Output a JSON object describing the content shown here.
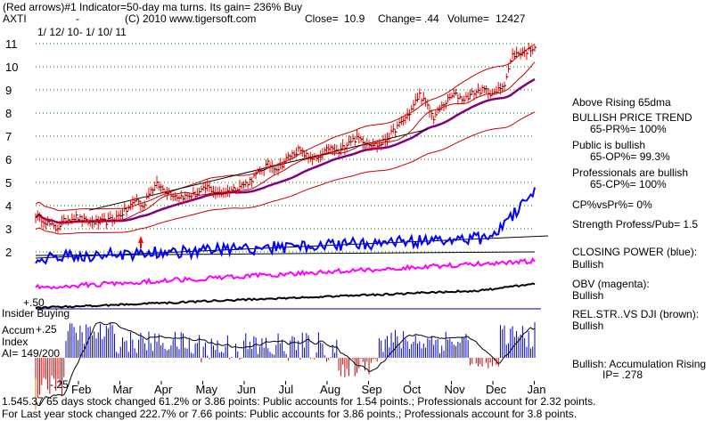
{
  "header": {
    "line1": "(Red arrows)#1 Indicator=50-day ma turns. Its gain= 236% Buy",
    "symbol": "AXTI",
    "dash": "-",
    "copyright": "(C) 2010 www.tigersoft.com",
    "close_label": "Close=",
    "close_value": "10.9",
    "change_label": "Change=",
    "change_value": ".44",
    "volume_label": "Volume=",
    "volume_value": "12427",
    "date_range": "1/ 12/ 10- 1/ 10/ 11"
  },
  "right_panel": {
    "above_ma": "Above Rising 65dma",
    "bullish_trend_title": "BULLISH PRICE TREND",
    "pr_pct": "65-PR%= 100%",
    "public_title": "Public is bullish",
    "op_pct": "65-OP%= 99.3%",
    "pros_title": "Professionals are bullish",
    "cp_pct": "65-CP%= 100%",
    "cpvspr": "CP%vsPr%=  0%",
    "strength": "Strength Profess/Pub= 1.5",
    "closing_power_title": "CLOSING POWER (blue):",
    "closing_power_value": "Bullish",
    "obv_title": "OBV (magenta):",
    "obv_value": "Bullish",
    "relstr_title": "REL.STR..VS DJI (brown):",
    "relstr_value": "Bullish",
    "accum_title": "Bullish: Accumulation Rising",
    "ip": "IP=  .278"
  },
  "lower_labels": {
    "plus50": "+.50",
    "insider": "Insider Buying",
    "accum": "Accum",
    "index": "Index",
    "ai": "AI= 149/200",
    "plus25": "+.25",
    "minus25": "-.25"
  },
  "footer": {
    "line1a": "1.545.37 65 days stock changed  61.2% or  3.86 points:  Public accounts for  1.54 points.;  Professionals account for  2.32 points.",
    "line2": "For Last year stock changed  222.7% or  7.66 points:  Public accounts for  3.86 points.;  Professionals account for  3.8 points."
  },
  "colors": {
    "price_bar": "#ff0000",
    "closing_power": "#0000ff",
    "obv": "#ff00ff",
    "rel_strength": "#8b4513",
    "ma65": "#800080",
    "band": "#cc0000",
    "accum_pos": "#0000cc",
    "accum_neg": "#cc0000"
  },
  "chart_data": {
    "type": "line",
    "y_tick_labels": [
      "11",
      "10",
      "9",
      "8",
      "7",
      "6",
      "5",
      "4",
      "3",
      "2"
    ],
    "x_tick_labels": [
      "Feb",
      "Mar",
      "Apr",
      "May",
      "Jun",
      "Jul",
      "Aug",
      "Sep",
      "Oct",
      "Nov",
      "Dec",
      "Jan"
    ],
    "grid": true,
    "price_anchors": [
      [
        0,
        3.6
      ],
      [
        5,
        3.3
      ],
      [
        10,
        3.0
      ],
      [
        15,
        3.4
      ],
      [
        20,
        3.5
      ],
      [
        25,
        3.3
      ],
      [
        30,
        3.3
      ],
      [
        35,
        3.3
      ],
      [
        40,
        3.5
      ],
      [
        45,
        3.8
      ],
      [
        50,
        4.3
      ],
      [
        53,
        3.9
      ],
      [
        56,
        4.6
      ],
      [
        60,
        4.9
      ],
      [
        65,
        4.6
      ],
      [
        70,
        4.4
      ],
      [
        75,
        4.4
      ],
      [
        80,
        4.5
      ],
      [
        85,
        4.8
      ],
      [
        90,
        4.5
      ],
      [
        95,
        4.6
      ],
      [
        100,
        4.8
      ],
      [
        105,
        5.0
      ],
      [
        110,
        5.4
      ],
      [
        115,
        5.8
      ],
      [
        120,
        5.6
      ],
      [
        125,
        6.1
      ],
      [
        130,
        6.4
      ],
      [
        135,
        6.1
      ],
      [
        140,
        6.0
      ],
      [
        145,
        6.5
      ],
      [
        150,
        6.3
      ],
      [
        155,
        6.8
      ],
      [
        160,
        6.9
      ],
      [
        165,
        6.7
      ],
      [
        170,
        6.6
      ],
      [
        175,
        7.0
      ],
      [
        180,
        7.5
      ],
      [
        185,
        8.0
      ],
      [
        190,
        8.8
      ],
      [
        193,
        8.4
      ],
      [
        197,
        7.8
      ],
      [
        202,
        8.4
      ],
      [
        207,
        8.8
      ],
      [
        212,
        8.6
      ],
      [
        217,
        8.9
      ],
      [
        222,
        9.0
      ],
      [
        227,
        8.8
      ],
      [
        232,
        9.3
      ],
      [
        236,
        10.5
      ],
      [
        240,
        10.6
      ],
      [
        244,
        10.7
      ],
      [
        247,
        10.9
      ]
    ],
    "accum_note": "Accumulation index histogram with moving average"
  }
}
